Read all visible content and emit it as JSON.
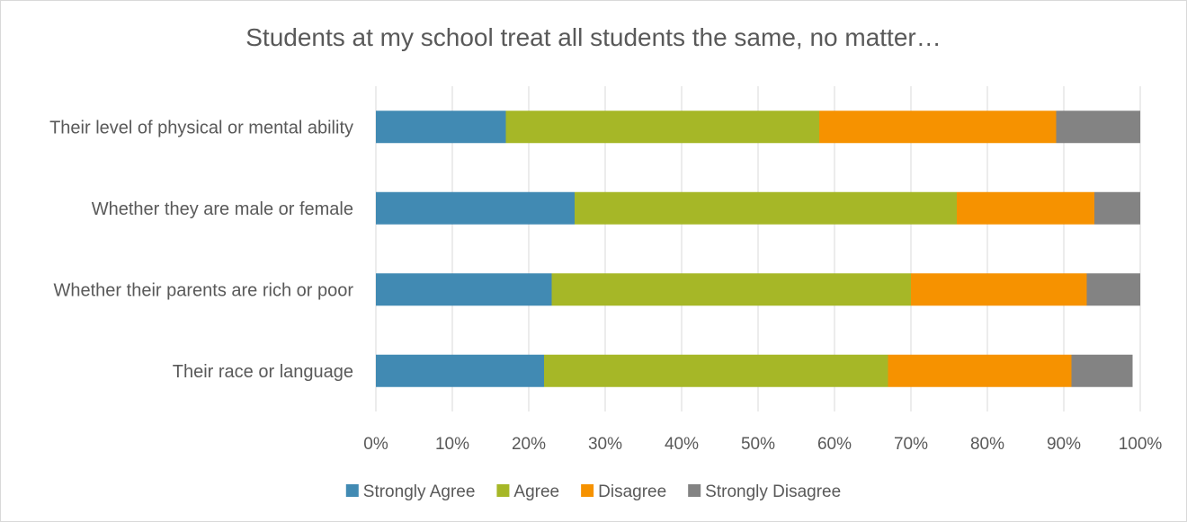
{
  "chart_data": {
    "type": "bar",
    "orientation": "horizontal",
    "stacked": true,
    "title": "Students at my school treat all students the same, no matter…",
    "categories": [
      "Their level of physical or mental ability",
      "Whether they are male or female",
      "Whether their parents are rich or poor",
      "Their race or language"
    ],
    "series": [
      {
        "name": "Strongly Agree",
        "color": "#418ab3",
        "values": [
          0.17,
          0.26,
          0.23,
          0.22
        ]
      },
      {
        "name": "Agree",
        "color": "#a6b727",
        "values": [
          0.41,
          0.5,
          0.47,
          0.45
        ]
      },
      {
        "name": "Disagree",
        "color": "#f69200",
        "values": [
          0.31,
          0.18,
          0.23,
          0.24
        ]
      },
      {
        "name": "Strongly Disagree",
        "color": "#838383",
        "values": [
          0.11,
          0.06,
          0.07,
          0.08
        ]
      }
    ],
    "xlim": [
      0,
      1
    ],
    "x_ticks": [
      "0%",
      "10%",
      "20%",
      "30%",
      "40%",
      "50%",
      "60%",
      "70%",
      "80%",
      "90%",
      "100%"
    ],
    "grid": true,
    "legend_position": "bottom"
  }
}
